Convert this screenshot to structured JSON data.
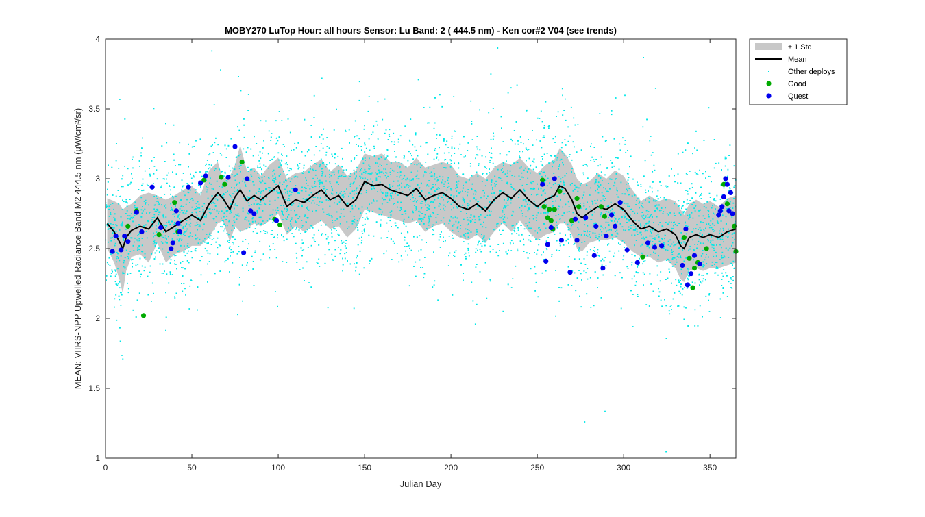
{
  "chart_data": {
    "type": "scatter",
    "title": "MOBY270   LuTop  Hour: all hours  Sensor: Lu Band: 2 ( 444.5 nm)  - Ken cor#2 V04 (see trends)",
    "xlabel": "Julian Day",
    "ylabel": "MEAN: VIIRS-NPP Upwelled Radiance Band M2 444.5 nm (μW/cm²/sr)",
    "xlim": [
      0,
      365
    ],
    "ylim": [
      1,
      4
    ],
    "x_ticks": [
      0,
      50,
      100,
      150,
      200,
      250,
      300,
      350
    ],
    "y_ticks": [
      1,
      1.5,
      2,
      2.5,
      3,
      3.5,
      4
    ],
    "y_tick_labels": [
      "1",
      "1.5",
      "2",
      "2.5",
      "3",
      "3.5",
      "4"
    ],
    "grid": false,
    "legend_position": "outside-top-right",
    "colors": {
      "std_band": "#c8c8c8",
      "mean": "#000000",
      "other": "#00e8e8",
      "good": "#00aa00",
      "quest": "#0000ee"
    },
    "legend": [
      {
        "key": "std",
        "label": "± 1 Std"
      },
      {
        "key": "mean",
        "label": "Mean"
      },
      {
        "key": "other",
        "label": "Other deploys"
      },
      {
        "key": "good",
        "label": "Good"
      },
      {
        "key": "quest",
        "label": "Quest"
      }
    ],
    "mean": {
      "name": "Mean",
      "x": [
        1,
        5,
        8,
        10,
        12,
        15,
        20,
        25,
        30,
        35,
        40,
        45,
        50,
        55,
        60,
        65,
        68,
        72,
        75,
        78,
        82,
        86,
        90,
        95,
        100,
        105,
        110,
        115,
        120,
        125,
        130,
        135,
        140,
        145,
        150,
        155,
        160,
        165,
        170,
        175,
        180,
        185,
        190,
        195,
        200,
        205,
        210,
        215,
        220,
        225,
        230,
        235,
        240,
        245,
        250,
        255,
        260,
        263,
        266,
        270,
        273,
        276,
        280,
        285,
        290,
        295,
        300,
        305,
        310,
        315,
        320,
        325,
        330,
        333,
        335,
        338,
        342,
        346,
        350,
        355,
        360,
        365
      ],
      "values": [
        2.68,
        2.62,
        2.55,
        2.5,
        2.58,
        2.63,
        2.66,
        2.64,
        2.72,
        2.62,
        2.66,
        2.7,
        2.74,
        2.7,
        2.82,
        2.9,
        2.86,
        2.78,
        2.87,
        2.92,
        2.84,
        2.88,
        2.85,
        2.9,
        2.95,
        2.8,
        2.85,
        2.83,
        2.88,
        2.92,
        2.85,
        2.88,
        2.8,
        2.85,
        2.98,
        2.95,
        2.96,
        2.92,
        2.9,
        2.88,
        2.93,
        2.85,
        2.88,
        2.9,
        2.86,
        2.8,
        2.78,
        2.82,
        2.77,
        2.85,
        2.9,
        2.86,
        2.92,
        2.85,
        2.8,
        2.85,
        2.88,
        2.95,
        2.93,
        2.85,
        2.75,
        2.72,
        2.76,
        2.8,
        2.78,
        2.82,
        2.78,
        2.7,
        2.64,
        2.66,
        2.62,
        2.64,
        2.6,
        2.52,
        2.5,
        2.58,
        2.6,
        2.58,
        2.6,
        2.58,
        2.62,
        2.64
      ]
    },
    "std": {
      "name": "± 1 Std",
      "x": [
        1,
        5,
        8,
        10,
        12,
        15,
        20,
        25,
        30,
        35,
        40,
        45,
        50,
        55,
        60,
        65,
        68,
        72,
        75,
        78,
        82,
        86,
        90,
        95,
        100,
        105,
        110,
        115,
        120,
        125,
        130,
        135,
        140,
        145,
        150,
        155,
        160,
        165,
        170,
        175,
        180,
        185,
        190,
        195,
        200,
        205,
        210,
        215,
        220,
        225,
        230,
        235,
        240,
        245,
        250,
        255,
        260,
        263,
        266,
        270,
        273,
        276,
        280,
        285,
        290,
        295,
        300,
        305,
        310,
        315,
        320,
        325,
        330,
        333,
        335,
        338,
        342,
        346,
        350,
        355,
        360,
        365
      ],
      "upper": [
        2.86,
        2.84,
        2.82,
        2.78,
        2.8,
        2.82,
        2.88,
        2.9,
        2.88,
        2.85,
        2.88,
        2.92,
        2.95,
        2.88,
        3.06,
        3.12,
        3.0,
        3.02,
        3.1,
        3.24,
        3.05,
        3.08,
        3.02,
        3.1,
        3.15,
        3.0,
        3.04,
        3.05,
        3.1,
        3.14,
        3.05,
        3.1,
        3.02,
        3.06,
        3.18,
        3.16,
        3.18,
        3.12,
        3.12,
        3.08,
        3.15,
        3.08,
        3.1,
        3.12,
        3.1,
        3.02,
        3.0,
        3.04,
        3.0,
        3.08,
        3.12,
        3.1,
        3.15,
        3.08,
        3.04,
        3.1,
        3.14,
        3.22,
        3.18,
        3.1,
        3.0,
        2.96,
        2.98,
        3.04,
        3.0,
        3.06,
        3.02,
        2.92,
        2.84,
        2.88,
        2.84,
        2.86,
        2.84,
        2.78,
        2.74,
        2.82,
        2.85,
        2.82,
        2.84,
        2.8,
        2.86,
        2.88
      ],
      "lower": [
        2.5,
        2.4,
        2.28,
        2.18,
        2.34,
        2.44,
        2.46,
        2.4,
        2.54,
        2.4,
        2.46,
        2.48,
        2.52,
        2.52,
        2.58,
        2.68,
        2.7,
        2.55,
        2.66,
        2.62,
        2.64,
        2.68,
        2.66,
        2.7,
        2.75,
        2.6,
        2.66,
        2.62,
        2.66,
        2.7,
        2.64,
        2.66,
        2.58,
        2.64,
        2.78,
        2.76,
        2.74,
        2.72,
        2.7,
        2.68,
        2.7,
        2.62,
        2.66,
        2.68,
        2.62,
        2.58,
        2.56,
        2.6,
        2.54,
        2.62,
        2.68,
        2.62,
        2.7,
        2.62,
        2.56,
        2.6,
        2.62,
        2.68,
        2.68,
        2.6,
        2.5,
        2.48,
        2.54,
        2.56,
        2.56,
        2.58,
        2.54,
        2.48,
        2.44,
        2.44,
        2.4,
        2.42,
        2.36,
        2.28,
        2.26,
        2.34,
        2.36,
        2.34,
        2.36,
        2.36,
        2.38,
        2.4
      ]
    },
    "good": {
      "name": "Good",
      "x": [
        13,
        18,
        22,
        31,
        40,
        42,
        57,
        67,
        69,
        79,
        98,
        101,
        253,
        254,
        256,
        257,
        258,
        259,
        260,
        263,
        270,
        273,
        274,
        287,
        289,
        311,
        335,
        338,
        340,
        341,
        343,
        348,
        358,
        360,
        364,
        365
      ],
      "values": [
        2.66,
        2.77,
        2.02,
        2.6,
        2.83,
        2.62,
        2.99,
        3.01,
        2.96,
        3.12,
        2.71,
        2.67,
        2.99,
        2.8,
        2.72,
        2.78,
        2.7,
        2.64,
        2.78,
        2.91,
        2.7,
        2.86,
        2.8,
        2.8,
        2.73,
        2.44,
        2.58,
        2.43,
        2.22,
        2.36,
        2.4,
        2.5,
        2.96,
        2.82,
        2.66,
        2.48
      ]
    },
    "quest": {
      "name": "Quest",
      "x": [
        4,
        6,
        9,
        11,
        13,
        18,
        21,
        27,
        32,
        38,
        39,
        41,
        42,
        43,
        48,
        55,
        58,
        71,
        75,
        80,
        82,
        84,
        86,
        99,
        110,
        253,
        255,
        256,
        258,
        260,
        264,
        269,
        272,
        273,
        278,
        283,
        284,
        288,
        290,
        293,
        295,
        298,
        302,
        308,
        314,
        318,
        322,
        334,
        336,
        337,
        339,
        341,
        344,
        355,
        356,
        357,
        358,
        359,
        360,
        361,
        362,
        363
      ],
      "values": [
        2.48,
        2.59,
        2.49,
        2.59,
        2.55,
        2.76,
        2.62,
        2.94,
        2.65,
        2.5,
        2.54,
        2.77,
        2.68,
        2.62,
        2.94,
        2.97,
        3.02,
        3.01,
        3.23,
        2.47,
        3.0,
        2.77,
        2.75,
        2.7,
        2.92,
        2.96,
        2.41,
        2.53,
        2.65,
        3.0,
        2.56,
        2.33,
        2.71,
        2.56,
        2.72,
        2.45,
        2.66,
        2.36,
        2.59,
        2.74,
        2.66,
        2.83,
        2.49,
        2.4,
        2.54,
        2.51,
        2.52,
        2.38,
        2.64,
        2.24,
        2.32,
        2.45,
        2.39,
        2.74,
        2.77,
        2.8,
        2.87,
        3.0,
        2.96,
        2.77,
        2.9,
        2.75
      ]
    }
  }
}
